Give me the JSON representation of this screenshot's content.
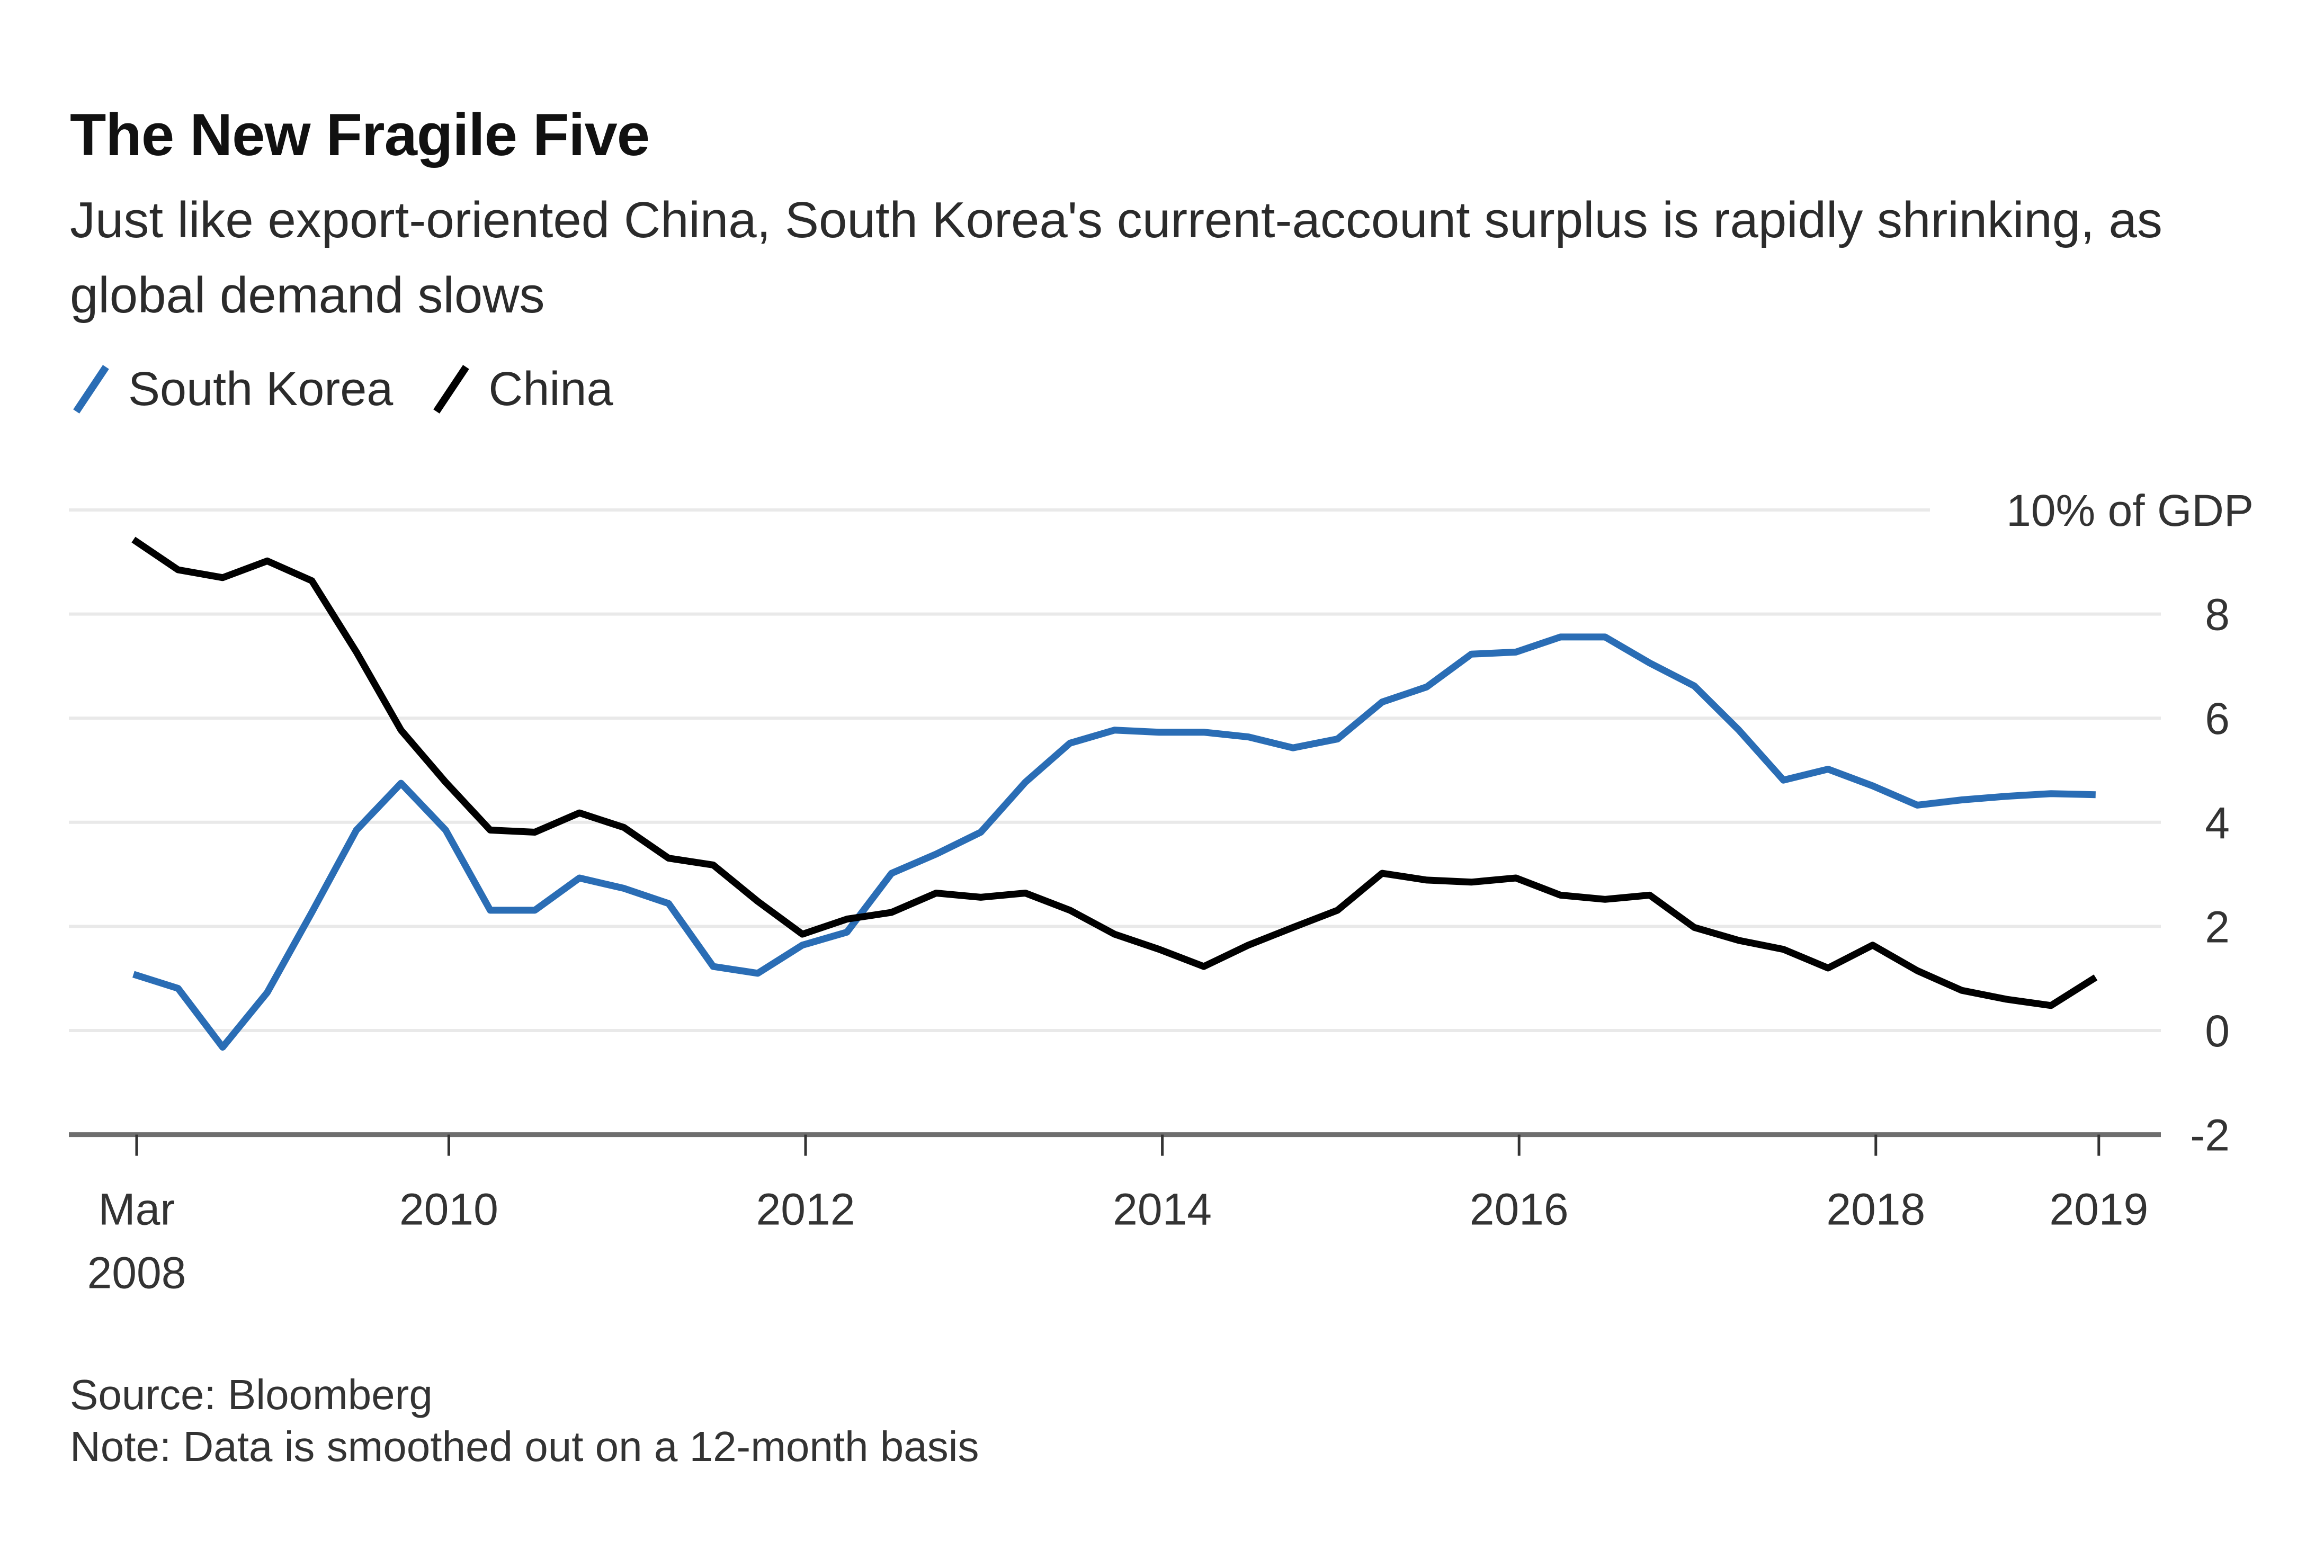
{
  "header": {
    "title": "The New Fragile Five",
    "subtitle": "Just like export-oriented China, South Korea's current-account surplus is rapidly shrinking, as global demand slows"
  },
  "legend": [
    {
      "label": "South Korea",
      "color": "#2a6db5",
      "icon": "diagonal-line-swatch-icon"
    },
    {
      "label": "China",
      "color": "#000000",
      "icon": "diagonal-line-swatch-icon"
    }
  ],
  "footer": {
    "source": "Source: Bloomberg",
    "note": "Note: Data is smoothed out on a 12-month basis"
  },
  "chart_data": {
    "type": "line",
    "title": "The New Fragile Five",
    "subtitle": "Just like export-oriented China, South Korea's current-account surplus is rapidly shrinking, as global demand slows",
    "xlabel": "",
    "ylabel": "% of GDP",
    "y_unit_label": "10% of GDP",
    "ylim": [
      -2,
      10
    ],
    "yticks": [
      -2,
      0,
      2,
      4,
      6,
      8,
      10
    ],
    "ytick_labels": [
      "-2",
      "0",
      "2",
      "4",
      "6",
      "8",
      "10% of GDP"
    ],
    "y_axis_side": "right",
    "grid": true,
    "legend_position": "top-left",
    "x_frequency": "quarterly",
    "x_start": "Mar 2008",
    "x_end": "Mar 2019",
    "x_ticks": [
      {
        "index": 0,
        "label": "Mar",
        "sublabel": "2008"
      },
      {
        "index": 7,
        "label": "2010",
        "sublabel": ""
      },
      {
        "index": 15,
        "label": "2012",
        "sublabel": ""
      },
      {
        "index": 23,
        "label": "2014",
        "sublabel": ""
      },
      {
        "index": 31,
        "label": "2016",
        "sublabel": ""
      },
      {
        "index": 39,
        "label": "2018",
        "sublabel": ""
      },
      {
        "index": 44,
        "label": "2019",
        "sublabel": ""
      }
    ],
    "x": [
      "2008-Q1",
      "2008-Q2",
      "2008-Q3",
      "2008-Q4",
      "2009-Q1",
      "2009-Q2",
      "2009-Q3",
      "2009-Q4",
      "2010-Q1",
      "2010-Q2",
      "2010-Q3",
      "2010-Q4",
      "2011-Q1",
      "2011-Q2",
      "2011-Q3",
      "2011-Q4",
      "2012-Q1",
      "2012-Q2",
      "2012-Q3",
      "2012-Q4",
      "2013-Q1",
      "2013-Q2",
      "2013-Q3",
      "2013-Q4",
      "2014-Q1",
      "2014-Q2",
      "2014-Q3",
      "2014-Q4",
      "2015-Q1",
      "2015-Q2",
      "2015-Q3",
      "2015-Q4",
      "2016-Q1",
      "2016-Q2",
      "2016-Q3",
      "2016-Q4",
      "2017-Q1",
      "2017-Q2",
      "2017-Q3",
      "2017-Q4",
      "2018-Q1",
      "2018-Q2",
      "2018-Q3",
      "2018-Q4",
      "2019-Q1"
    ],
    "series": [
      {
        "name": "South Korea",
        "color": "#2a6db5",
        "values": [
          1.08,
          0.81,
          -0.32,
          0.73,
          2.27,
          3.85,
          4.75,
          3.85,
          2.31,
          2.31,
          2.93,
          2.73,
          2.44,
          1.23,
          1.1,
          1.64,
          1.89,
          3.02,
          3.39,
          3.81,
          4.77,
          5.52,
          5.77,
          5.73,
          5.73,
          5.64,
          5.43,
          5.6,
          6.31,
          6.6,
          7.23,
          7.27,
          7.56,
          7.56,
          7.06,
          6.62,
          5.77,
          4.81,
          5.02,
          4.7,
          4.33,
          4.43,
          4.5,
          4.55,
          4.53
        ]
      },
      {
        "name": "China",
        "color": "#000000",
        "values": [
          9.43,
          8.85,
          8.7,
          9.02,
          8.64,
          7.27,
          5.77,
          4.77,
          3.85,
          3.81,
          4.18,
          3.9,
          3.31,
          3.18,
          2.48,
          1.85,
          2.14,
          2.27,
          2.64,
          2.56,
          2.64,
          2.31,
          1.85,
          1.56,
          1.23,
          1.64,
          1.98,
          2.31,
          3.02,
          2.89,
          2.85,
          2.93,
          2.6,
          2.52,
          2.6,
          1.98,
          1.73,
          1.56,
          1.2,
          1.64,
          1.15,
          0.77,
          0.6,
          0.48,
          1.02
        ]
      }
    ],
    "source": "Source: Bloomberg",
    "note": "Note: Data is smoothed out on a 12-month basis"
  }
}
